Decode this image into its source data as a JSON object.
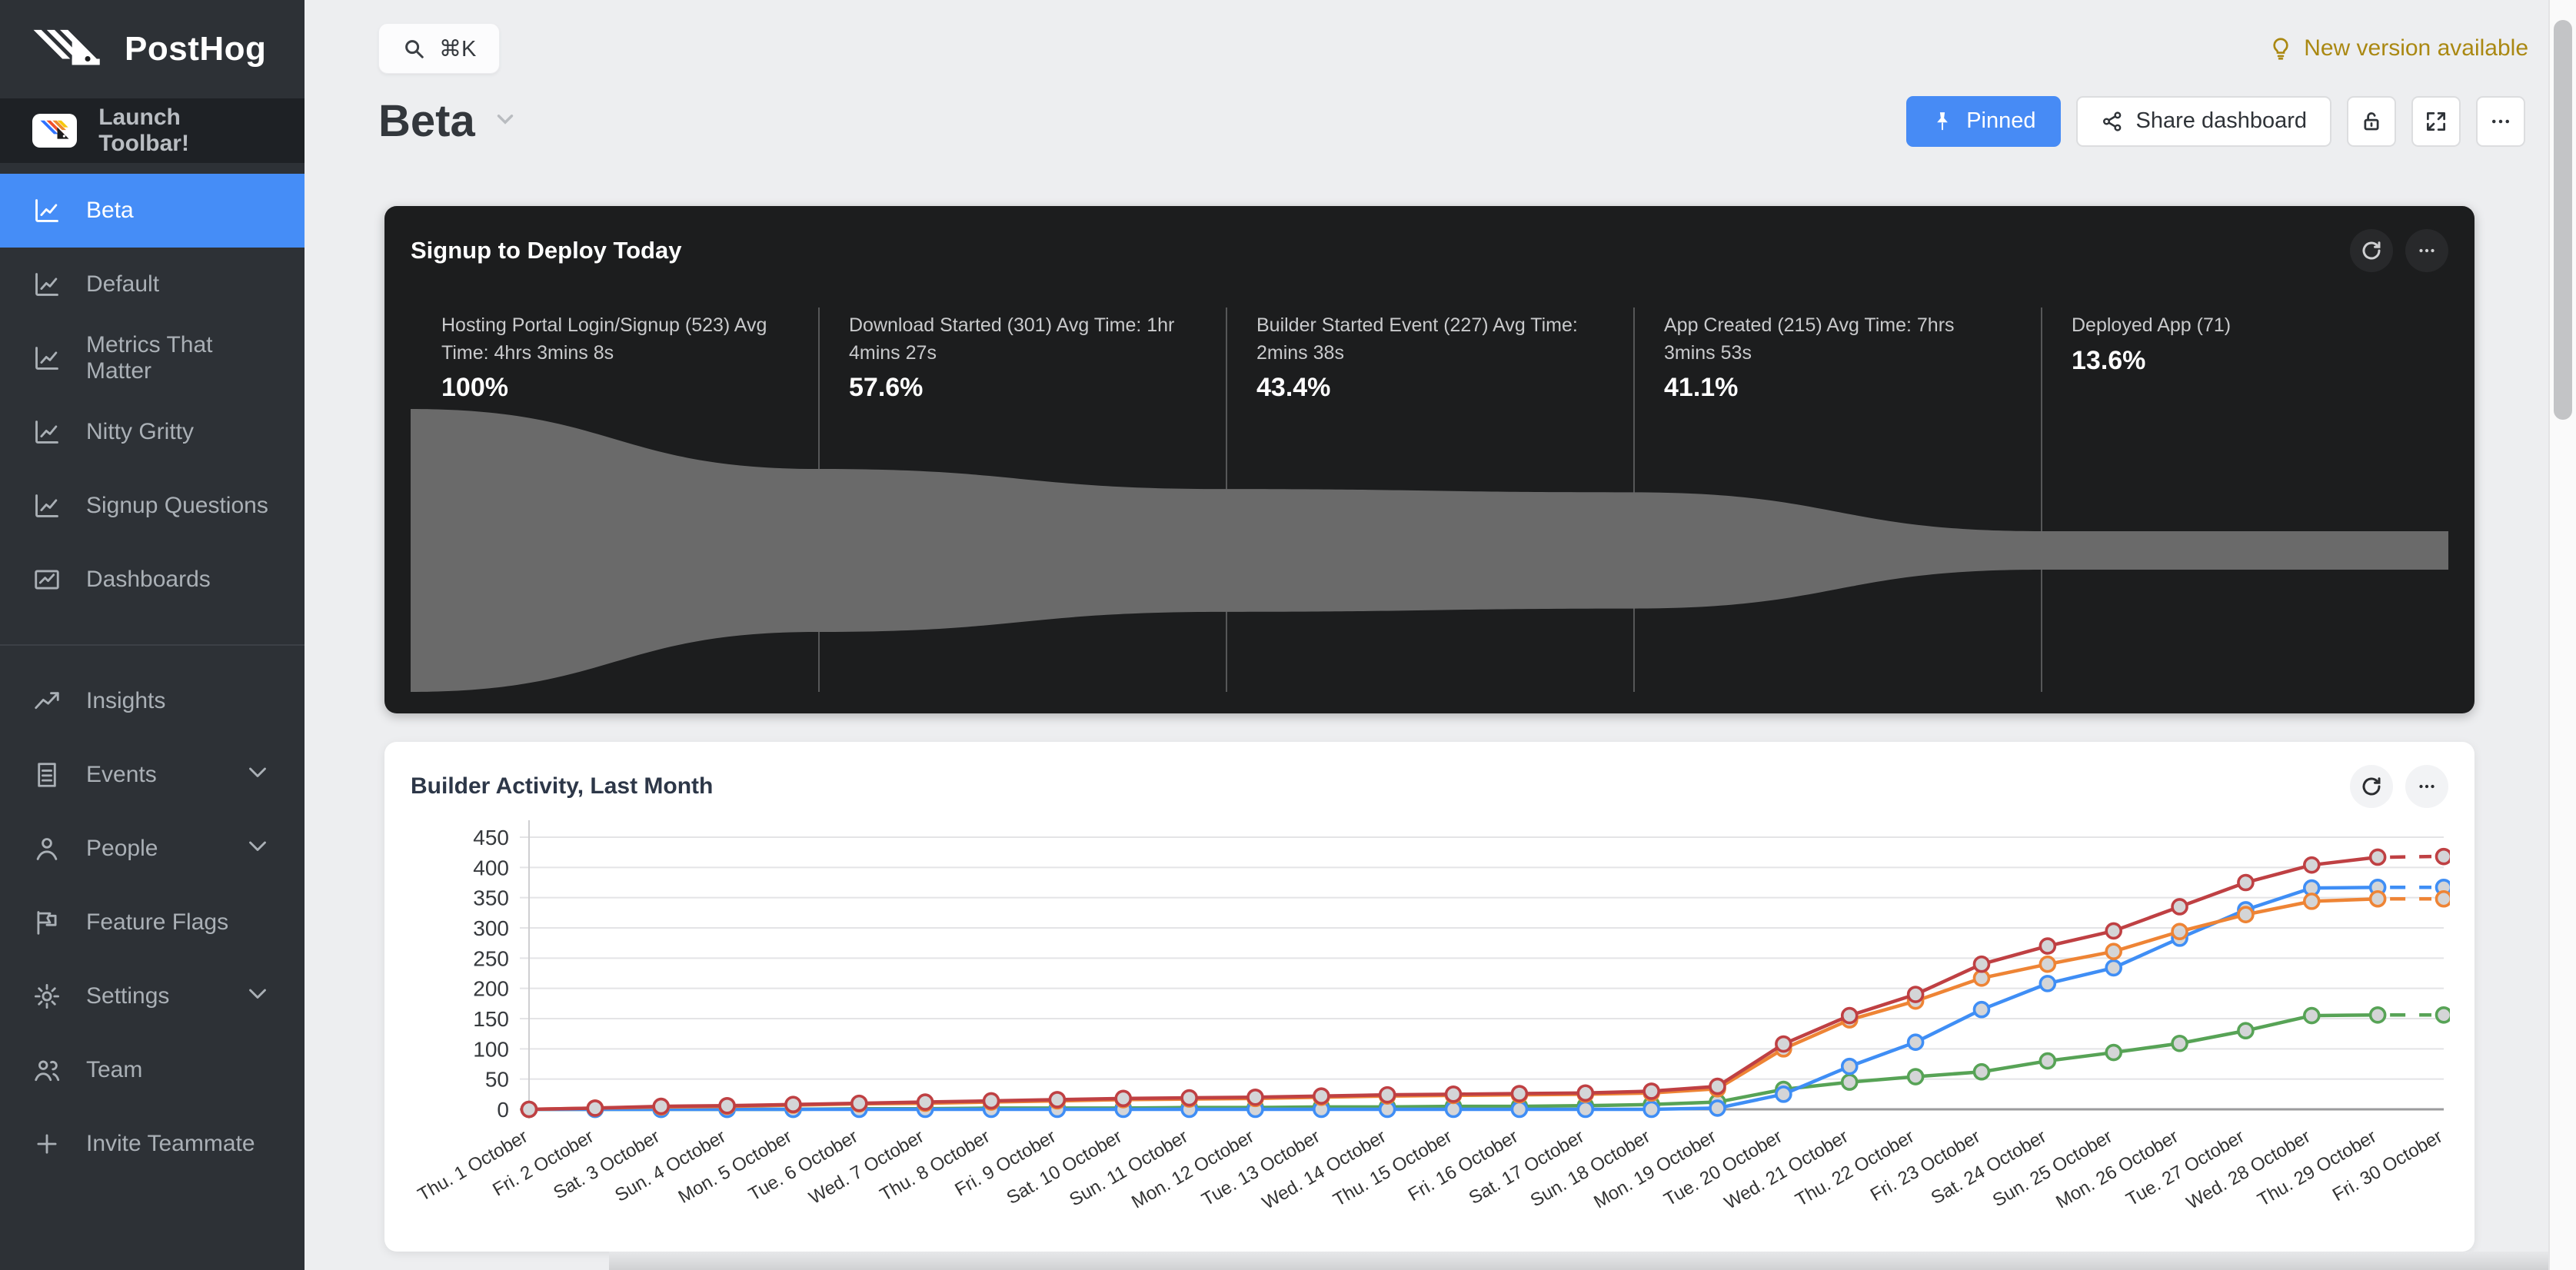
{
  "colors": {
    "sidebar_bg": "#2d3136",
    "active_blue": "#458df7",
    "primary_button": "#478bf5",
    "new_version_amber": "#aa8812",
    "funnel_fill": "#6a6a6a",
    "dark_card_bg": "#1c1d1e"
  },
  "sidebar": {
    "logo_text": "PostHog",
    "launch_toolbar_label": "Launch Toolbar!",
    "dashboards": [
      {
        "label": "Beta"
      },
      {
        "label": "Default"
      },
      {
        "label": "Metrics That Matter"
      },
      {
        "label": "Nitty Gritty"
      },
      {
        "label": "Signup Questions"
      },
      {
        "label": "Dashboards"
      }
    ],
    "nav": [
      {
        "label": "Insights"
      },
      {
        "label": "Events"
      },
      {
        "label": "People"
      },
      {
        "label": "Feature Flags"
      },
      {
        "label": "Settings"
      },
      {
        "label": "Team"
      },
      {
        "label": "Invite Teammate"
      }
    ]
  },
  "topbar": {
    "search_shortcut": "⌘K",
    "new_version": "New version available"
  },
  "header": {
    "title": "Beta",
    "pinned_label": "Pinned",
    "share_label": "Share dashboard",
    "more_label": "..."
  },
  "funnel_card": {
    "title": "Signup to Deploy Today",
    "steps": [
      {
        "label": "Hosting Portal Login/Signup (523) Avg Time: 4hrs 3mins 8s",
        "pct": "100%",
        "height": 1.0
      },
      {
        "label": "Download Started (301) Avg Time: 1hr 4mins 27s",
        "pct": "57.6%",
        "height": 0.576
      },
      {
        "label": "Builder Started Event (227) Avg Time: 2mins 38s",
        "pct": "43.4%",
        "height": 0.434
      },
      {
        "label": "App Created (215) Avg Time: 7hrs 3mins 53s",
        "pct": "41.1%",
        "height": 0.411
      },
      {
        "label": "Deployed App (71)",
        "pct": "13.6%",
        "height": 0.136
      }
    ]
  },
  "chart_card": {
    "title": "Builder Activity, Last Month"
  },
  "chart_data": {
    "type": "line",
    "title": "Builder Activity, Last Month",
    "xlabel": "",
    "ylabel": "",
    "ylim": [
      0,
      450
    ],
    "ytick_step": 50,
    "grid": true,
    "legend": "none",
    "last_segment_dashed": true,
    "x": [
      "Thu. 1 October",
      "Fri. 2 October",
      "Sat. 3 October",
      "Sun. 4 October",
      "Mon. 5 October",
      "Tue. 6 October",
      "Wed. 7 October",
      "Thu. 8 October",
      "Fri. 9 October",
      "Sat. 10 October",
      "Sun. 11 October",
      "Mon. 12 October",
      "Tue. 13 October",
      "Wed. 14 October",
      "Thu. 15 October",
      "Fri. 16 October",
      "Sat. 17 October",
      "Sun. 18 October",
      "Mon. 19 October",
      "Tue. 20 October",
      "Wed. 21 October",
      "Thu. 22 October",
      "Fri. 23 October",
      "Sat. 24 October",
      "Sun. 25 October",
      "Mon. 26 October",
      "Tue. 27 October",
      "Wed. 28 October",
      "Thu. 29 October",
      "Fri. 30 October"
    ],
    "series": [
      {
        "name": "series-green",
        "color": "#57a356",
        "values": [
          0,
          0,
          0,
          0,
          0,
          1,
          1,
          2,
          2,
          2,
          3,
          3,
          4,
          4,
          5,
          5,
          6,
          8,
          12,
          33,
          45,
          54,
          62,
          80,
          94,
          109,
          130,
          155,
          156,
          156
        ]
      },
      {
        "name": "series-blue",
        "color": "#3f8ef5",
        "values": [
          0,
          0,
          0,
          0,
          0,
          0,
          0,
          0,
          0,
          0,
          0,
          0,
          0,
          0,
          0,
          0,
          0,
          0,
          2,
          25,
          71,
          111,
          165,
          208,
          234,
          283,
          330,
          366,
          367,
          367
        ]
      },
      {
        "name": "series-orange",
        "color": "#ee8435",
        "values": [
          0,
          2,
          4,
          5,
          7,
          9,
          10,
          12,
          14,
          16,
          17,
          18,
          20,
          22,
          23,
          24,
          25,
          27,
          34,
          100,
          148,
          179,
          217,
          240,
          261,
          294,
          322,
          344,
          348,
          348
        ]
      },
      {
        "name": "series-red",
        "color": "#bf4043",
        "values": [
          0,
          2,
          5,
          6,
          8,
          10,
          12,
          14,
          16,
          18,
          19,
          20,
          22,
          24,
          25,
          26,
          27,
          30,
          38,
          108,
          155,
          190,
          240,
          270,
          295,
          335,
          375,
          404,
          417,
          418
        ]
      }
    ]
  }
}
